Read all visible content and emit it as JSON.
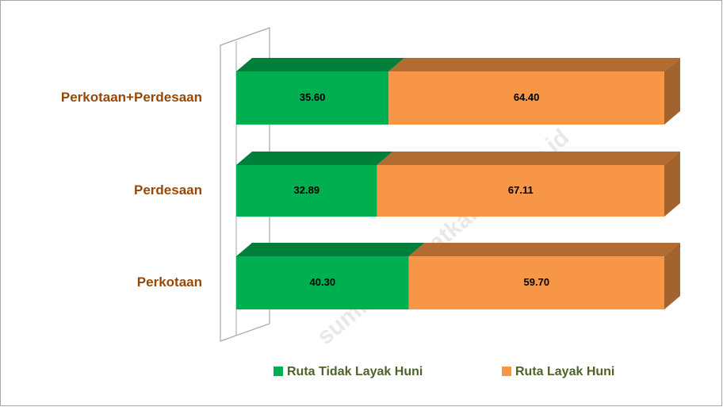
{
  "chart_data": {
    "type": "bar3d_stacked_horizontal",
    "categories": [
      "Perkotaan+Perdesaan",
      "Perdesaan",
      "Perkotaan"
    ],
    "series": [
      {
        "name": "Ruta Tidak Layak Huni",
        "color": "#00b050",
        "values": [
          35.6,
          32.89,
          40.3
        ],
        "value_labels": [
          "35.60",
          "32.89",
          "40.30"
        ]
      },
      {
        "name": "Ruta Layak Huni",
        "color": "#f79646",
        "values": [
          64.4,
          67.11,
          59.7
        ],
        "value_labels": [
          "64.40",
          "67.11",
          "59.70"
        ]
      }
    ],
    "xlim": [
      0,
      100
    ],
    "legend": "bottom",
    "watermark": "sumbawabaratkab.bps.go.id"
  }
}
